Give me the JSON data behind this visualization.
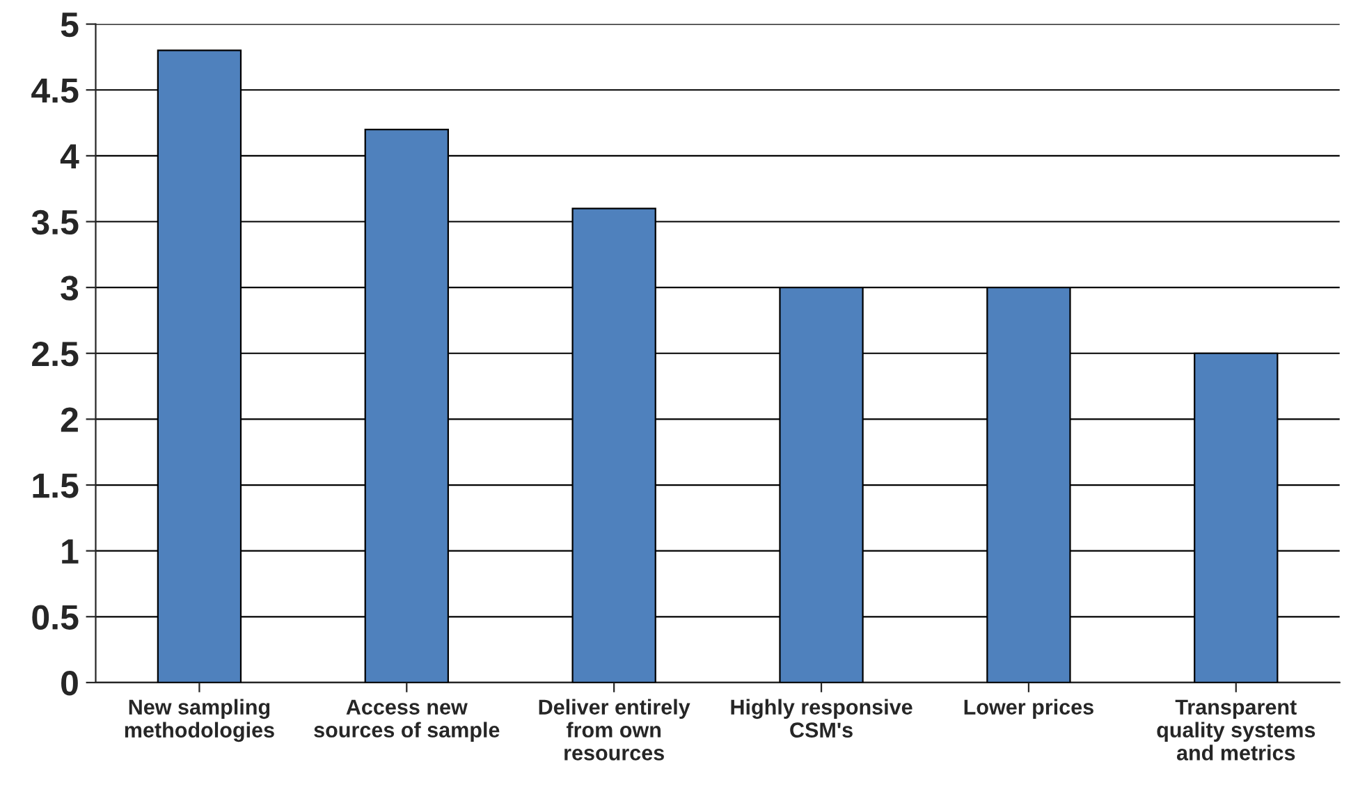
{
  "chart_data": {
    "type": "bar",
    "categories": [
      "New sampling\nmethodologies",
      "Access new\nsources of sample",
      "Deliver entirely\nfrom own\nresources",
      "Highly responsive\nCSM's",
      "Lower prices",
      "Transparent\nquality systems\nand metrics"
    ],
    "values": [
      4.8,
      4.2,
      3.6,
      3.0,
      3.0,
      2.5
    ],
    "color": "#4f81bd",
    "ylim": [
      0,
      5
    ],
    "yticks": [
      0,
      0.5,
      1,
      1.5,
      2,
      2.5,
      3,
      3.5,
      4,
      4.5,
      5
    ],
    "grid": "y"
  }
}
